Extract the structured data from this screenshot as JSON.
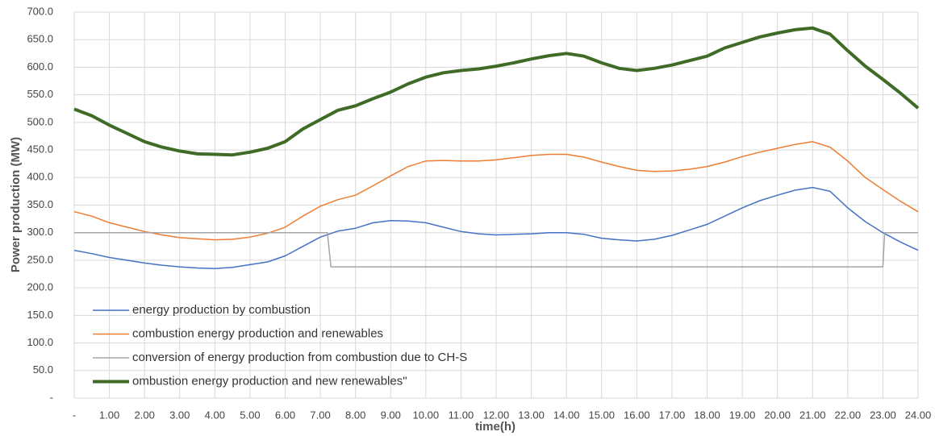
{
  "chart_data": {
    "type": "line",
    "xlabel": "time(h)",
    "ylabel": "Power production (MW)",
    "x": [
      0,
      0.5,
      1,
      1.5,
      2,
      2.5,
      3,
      3.5,
      4,
      4.5,
      5,
      5.5,
      6,
      6.5,
      7,
      7.5,
      8,
      8.5,
      9,
      9.5,
      10,
      10.5,
      11,
      11.5,
      12,
      12.5,
      13,
      13.5,
      14,
      14.5,
      15,
      15.5,
      16,
      16.5,
      17,
      17.5,
      18,
      18.5,
      19,
      19.5,
      20,
      20.5,
      21,
      21.5,
      22,
      22.5,
      23,
      23.5,
      24
    ],
    "series": [
      {
        "name": "energy production by combustion",
        "color": "#4472c4",
        "width": 1.5,
        "values": [
          268,
          262,
          255,
          250,
          245,
          241,
          238,
          236,
          235,
          237,
          242,
          247,
          258,
          275,
          292,
          303,
          308,
          318,
          322,
          321,
          318,
          310,
          302,
          298,
          296,
          297,
          298,
          300,
          300,
          297,
          290,
          287,
          285,
          288,
          295,
          305,
          315,
          330,
          345,
          358,
          368,
          377,
          382,
          375,
          345,
          320,
          300,
          283,
          268
        ]
      },
      {
        "name": "combustion energy production and renewables",
        "color": "#ed7d31",
        "width": 1.5,
        "values": [
          338,
          330,
          318,
          310,
          302,
          296,
          291,
          289,
          287,
          288,
          292,
          299,
          310,
          330,
          348,
          360,
          368,
          385,
          403,
          420,
          430,
          431,
          430,
          430,
          432,
          436,
          440,
          442,
          442,
          437,
          428,
          420,
          413,
          411,
          412,
          415,
          420,
          428,
          438,
          446,
          453,
          460,
          465,
          455,
          430,
          400,
          378,
          357,
          338
        ]
      },
      {
        "name": "conversion of energy production from combustion due to CH-S",
        "color": "#a5a5a5",
        "width": 1.5,
        "x": [
          0,
          7.2,
          7.3,
          23,
          23.05,
          24
        ],
        "values": [
          300,
          300,
          238,
          238,
          300,
          300
        ]
      },
      {
        "name": "ombustion energy production and new renewables\"",
        "color": "#3f6b26",
        "width": 4,
        "values": [
          524,
          512,
          495,
          480,
          465,
          455,
          448,
          443,
          442,
          441,
          446,
          453,
          465,
          488,
          505,
          522,
          530,
          543,
          555,
          570,
          582,
          590,
          594,
          597,
          602,
          608,
          615,
          621,
          625,
          620,
          608,
          598,
          594,
          598,
          604,
          612,
          620,
          635,
          645,
          655,
          662,
          668,
          671,
          660,
          630,
          602,
          578,
          553,
          526
        ]
      }
    ],
    "xlim": [
      0,
      24
    ],
    "xticks": [
      {
        "value": 0,
        "label": "-"
      },
      {
        "value": 1,
        "label": "1.00"
      },
      {
        "value": 2,
        "label": "2.00"
      },
      {
        "value": 3,
        "label": "3.00"
      },
      {
        "value": 4,
        "label": "4.00"
      },
      {
        "value": 5,
        "label": "5.00"
      },
      {
        "value": 6,
        "label": "6.00"
      },
      {
        "value": 7,
        "label": "7.00"
      },
      {
        "value": 8,
        "label": "8.00"
      },
      {
        "value": 9,
        "label": "9.00"
      },
      {
        "value": 10,
        "label": "10.00"
      },
      {
        "value": 11,
        "label": "11.00"
      },
      {
        "value": 12,
        "label": "12.00"
      },
      {
        "value": 13,
        "label": "13.00"
      },
      {
        "value": 14,
        "label": "14.00"
      },
      {
        "value": 15,
        "label": "15.00"
      },
      {
        "value": 16,
        "label": "16.00"
      },
      {
        "value": 17,
        "label": "17.00"
      },
      {
        "value": 18,
        "label": "18.00"
      },
      {
        "value": 19,
        "label": "19.00"
      },
      {
        "value": 20,
        "label": "20.00"
      },
      {
        "value": 21,
        "label": "21.00"
      },
      {
        "value": 22,
        "label": "22.00"
      },
      {
        "value": 23,
        "label": "23.00"
      },
      {
        "value": 24,
        "label": "24.00"
      }
    ],
    "ylim": [
      0,
      700
    ],
    "yticks": [
      {
        "value": 0,
        "label": "-"
      },
      {
        "value": 50,
        "label": "50.0"
      },
      {
        "value": 100,
        "label": "100.0"
      },
      {
        "value": 150,
        "label": "150.0"
      },
      {
        "value": 200,
        "label": "200.0"
      },
      {
        "value": 250,
        "label": "250.0"
      },
      {
        "value": 300,
        "label": "300.0"
      },
      {
        "value": 350,
        "label": "350.0"
      },
      {
        "value": 400,
        "label": "400.0"
      },
      {
        "value": 450,
        "label": "450.0"
      },
      {
        "value": 500,
        "label": "500.0"
      },
      {
        "value": 550,
        "label": "550.0"
      },
      {
        "value": 600,
        "label": "600.0"
      },
      {
        "value": 650,
        "label": "650.0"
      },
      {
        "value": 700,
        "label": "700.0"
      }
    ],
    "grid": true,
    "legend": "lower left"
  }
}
